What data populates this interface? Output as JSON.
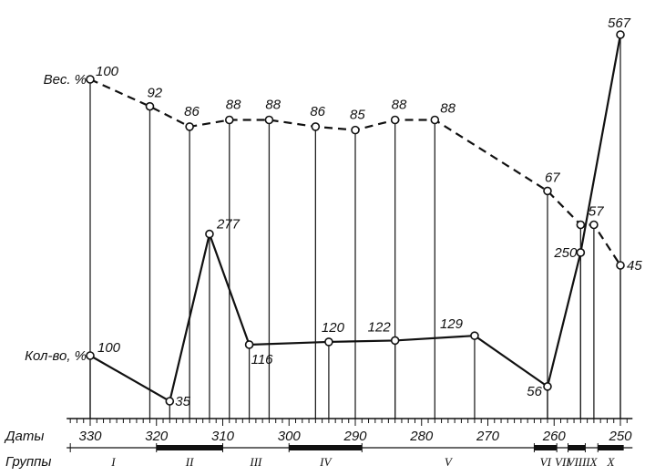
{
  "chart_data": {
    "type": "line",
    "x_axis": {
      "label": "Даты",
      "ticks": [
        330,
        320,
        310,
        300,
        290,
        280,
        270,
        260,
        250
      ],
      "range": [
        333,
        249
      ]
    },
    "group_axis": {
      "label": "Группы",
      "groups": [
        {
          "name": "I",
          "from": 333,
          "to": 320,
          "bold": false
        },
        {
          "name": "II",
          "from": 320,
          "to": 310,
          "bold": true
        },
        {
          "name": "III",
          "from": 310,
          "to": 300,
          "bold": false
        },
        {
          "name": "IV",
          "from": 300,
          "to": 289,
          "bold": true
        },
        {
          "name": "V",
          "from": 289,
          "to": 263,
          "bold": false
        },
        {
          "name": "VI",
          "from": 263,
          "to": 259.6,
          "bold": true
        },
        {
          "name": "VII",
          "from": 259.6,
          "to": 257.9,
          "bold": false
        },
        {
          "name": "VIII",
          "from": 257.9,
          "to": 255.3,
          "bold": true
        },
        {
          "name": "IX",
          "from": 255.3,
          "to": 253.4,
          "bold": false
        },
        {
          "name": "X",
          "from": 253.4,
          "to": 249.5,
          "bold": true
        }
      ]
    },
    "series": [
      {
        "name": "Вес. %",
        "style": "dashed",
        "x": [
          330,
          321,
          315,
          309,
          303,
          296,
          290,
          284,
          278,
          261,
          256,
          254,
          250
        ],
        "values": [
          100,
          92,
          86,
          88,
          88,
          86,
          85,
          88,
          88,
          67,
          57,
          57,
          45
        ],
        "labels": [
          "100",
          "92",
          "86",
          "88",
          "88",
          "86",
          "85",
          "88",
          "88",
          "67",
          "",
          "57",
          "45"
        ]
      },
      {
        "name": "Кол-во, %",
        "style": "solid",
        "x": [
          330,
          318,
          312,
          306,
          294,
          284,
          272,
          261,
          256,
          250
        ],
        "values": [
          100,
          35,
          277,
          116,
          120,
          122,
          129,
          56,
          250,
          567
        ],
        "labels": [
          "100",
          "35",
          "277",
          "116",
          "120",
          "122",
          "129",
          "56",
          "250",
          "567"
        ]
      }
    ]
  }
}
